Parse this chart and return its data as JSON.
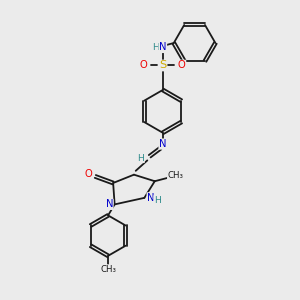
{
  "bg_color": "#ebebeb",
  "bond_color": "#1a1a1a",
  "atom_colors": {
    "N": "#0000cc",
    "O": "#ee0000",
    "S": "#ccaa00",
    "H": "#2e8b8b",
    "C": "#1a1a1a"
  },
  "font_size": 7.2,
  "lw": 1.3,
  "dbl_sep": 0.1
}
